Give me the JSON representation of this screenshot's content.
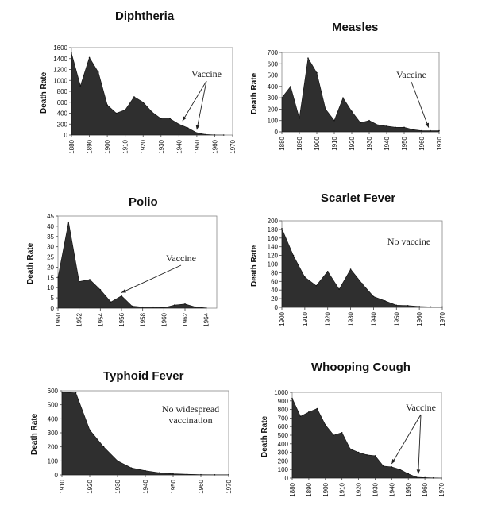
{
  "chart_data": [
    {
      "type": "area",
      "title": "Diphtheria",
      "ylabel": "Death Rate",
      "ylim": [
        0,
        1600
      ],
      "yticks": [
        0,
        200,
        400,
        600,
        800,
        1000,
        1200,
        1400,
        1600
      ],
      "xlim": [
        1880,
        1970
      ],
      "xticks": [
        1880,
        1890,
        1900,
        1910,
        1920,
        1930,
        1940,
        1950,
        1960,
        1970
      ],
      "x": [
        1880,
        1885,
        1890,
        1895,
        1900,
        1905,
        1910,
        1915,
        1920,
        1925,
        1930,
        1935,
        1940,
        1945,
        1950,
        1955,
        1960,
        1965
      ],
      "values": [
        1500,
        900,
        1420,
        1150,
        550,
        400,
        460,
        700,
        600,
        420,
        300,
        300,
        200,
        130,
        40,
        10,
        2,
        0
      ],
      "annotation": "Vaccine",
      "arrow_targets": [
        1942,
        1950
      ]
    },
    {
      "type": "area",
      "title": "Measles",
      "ylabel": "Death Rate",
      "ylim": [
        0,
        700
      ],
      "yticks": [
        0,
        100,
        200,
        300,
        400,
        500,
        600,
        700
      ],
      "xlim": [
        1880,
        1970
      ],
      "xticks": [
        1880,
        1890,
        1900,
        1910,
        1920,
        1930,
        1940,
        1950,
        1960,
        1970
      ],
      "x": [
        1880,
        1885,
        1890,
        1895,
        1900,
        1905,
        1910,
        1915,
        1920,
        1925,
        1930,
        1935,
        1940,
        1945,
        1950,
        1955,
        1960,
        1965,
        1970
      ],
      "values": [
        300,
        400,
        120,
        650,
        520,
        200,
        100,
        300,
        180,
        80,
        100,
        60,
        50,
        40,
        40,
        20,
        10,
        10,
        10
      ],
      "annotation": "Vaccine",
      "arrow_targets": [
        1964
      ]
    },
    {
      "type": "area",
      "title": "Polio",
      "ylabel": "Death Rate",
      "ylim": [
        0,
        45
      ],
      "yticks": [
        0,
        5,
        10,
        15,
        20,
        25,
        30,
        35,
        40,
        45
      ],
      "xlim": [
        1950,
        1965
      ],
      "xticks": [
        1950,
        1952,
        1954,
        1956,
        1958,
        1960,
        1962,
        1964
      ],
      "x": [
        1950,
        1951,
        1952,
        1953,
        1954,
        1955,
        1956,
        1957,
        1958,
        1959,
        1960,
        1961,
        1962,
        1963,
        1964
      ],
      "values": [
        15,
        42,
        13,
        14,
        9,
        3,
        6,
        1,
        0.5,
        0.5,
        0.2,
        1.5,
        2,
        0.5,
        0.1
      ],
      "annotation": "Vaccine",
      "arrow_targets": [
        1956
      ]
    },
    {
      "type": "area",
      "title": "Scarlet Fever",
      "ylabel": "Death Rate",
      "ylim": [
        0,
        200
      ],
      "yticks": [
        0,
        20,
        40,
        60,
        80,
        100,
        120,
        140,
        160,
        180,
        200
      ],
      "xlim": [
        1900,
        1970
      ],
      "xticks": [
        1900,
        1910,
        1920,
        1930,
        1940,
        1950,
        1960,
        1970
      ],
      "x": [
        1900,
        1905,
        1910,
        1915,
        1920,
        1925,
        1930,
        1935,
        1940,
        1945,
        1950,
        1955,
        1960,
        1965,
        1970
      ],
      "values": [
        182,
        120,
        70,
        50,
        83,
        42,
        88,
        55,
        25,
        15,
        5,
        4,
        2,
        1,
        1
      ],
      "annotation": "No vaccine",
      "arrow_targets": []
    },
    {
      "type": "area",
      "title": "Typhoid Fever",
      "ylabel": "Death Rate",
      "ylim": [
        0,
        600
      ],
      "yticks": [
        0,
        100,
        200,
        300,
        400,
        500,
        600
      ],
      "xlim": [
        1910,
        1970
      ],
      "xticks": [
        1910,
        1920,
        1930,
        1940,
        1950,
        1960,
        1970
      ],
      "x": [
        1910,
        1915,
        1920,
        1925,
        1930,
        1935,
        1940,
        1945,
        1950,
        1955,
        1960,
        1965,
        1970
      ],
      "values": [
        590,
        585,
        320,
        200,
        100,
        50,
        30,
        15,
        8,
        5,
        2,
        1,
        1
      ],
      "annotation": "No widespread vaccination",
      "annotation_lines": [
        "No widespread",
        "vaccination"
      ],
      "arrow_targets": []
    },
    {
      "type": "area",
      "title": "Whooping Cough",
      "ylabel": "Death Rate",
      "ylim": [
        0,
        1000
      ],
      "yticks": [
        0,
        100,
        200,
        300,
        400,
        500,
        600,
        700,
        800,
        900,
        1000
      ],
      "xlim": [
        1880,
        1970
      ],
      "xticks": [
        1880,
        1890,
        1900,
        1910,
        1920,
        1930,
        1940,
        1950,
        1960,
        1970
      ],
      "x": [
        1880,
        1885,
        1890,
        1895,
        1900,
        1905,
        1910,
        1915,
        1920,
        1925,
        1930,
        1935,
        1940,
        1945,
        1950,
        1955,
        1960,
        1965,
        1970
      ],
      "values": [
        930,
        720,
        770,
        810,
        620,
        500,
        530,
        340,
        300,
        270,
        260,
        140,
        130,
        100,
        50,
        10,
        5,
        2,
        0
      ],
      "annotation": "Vaccine",
      "arrow_targets": [
        1940,
        1956
      ]
    }
  ]
}
